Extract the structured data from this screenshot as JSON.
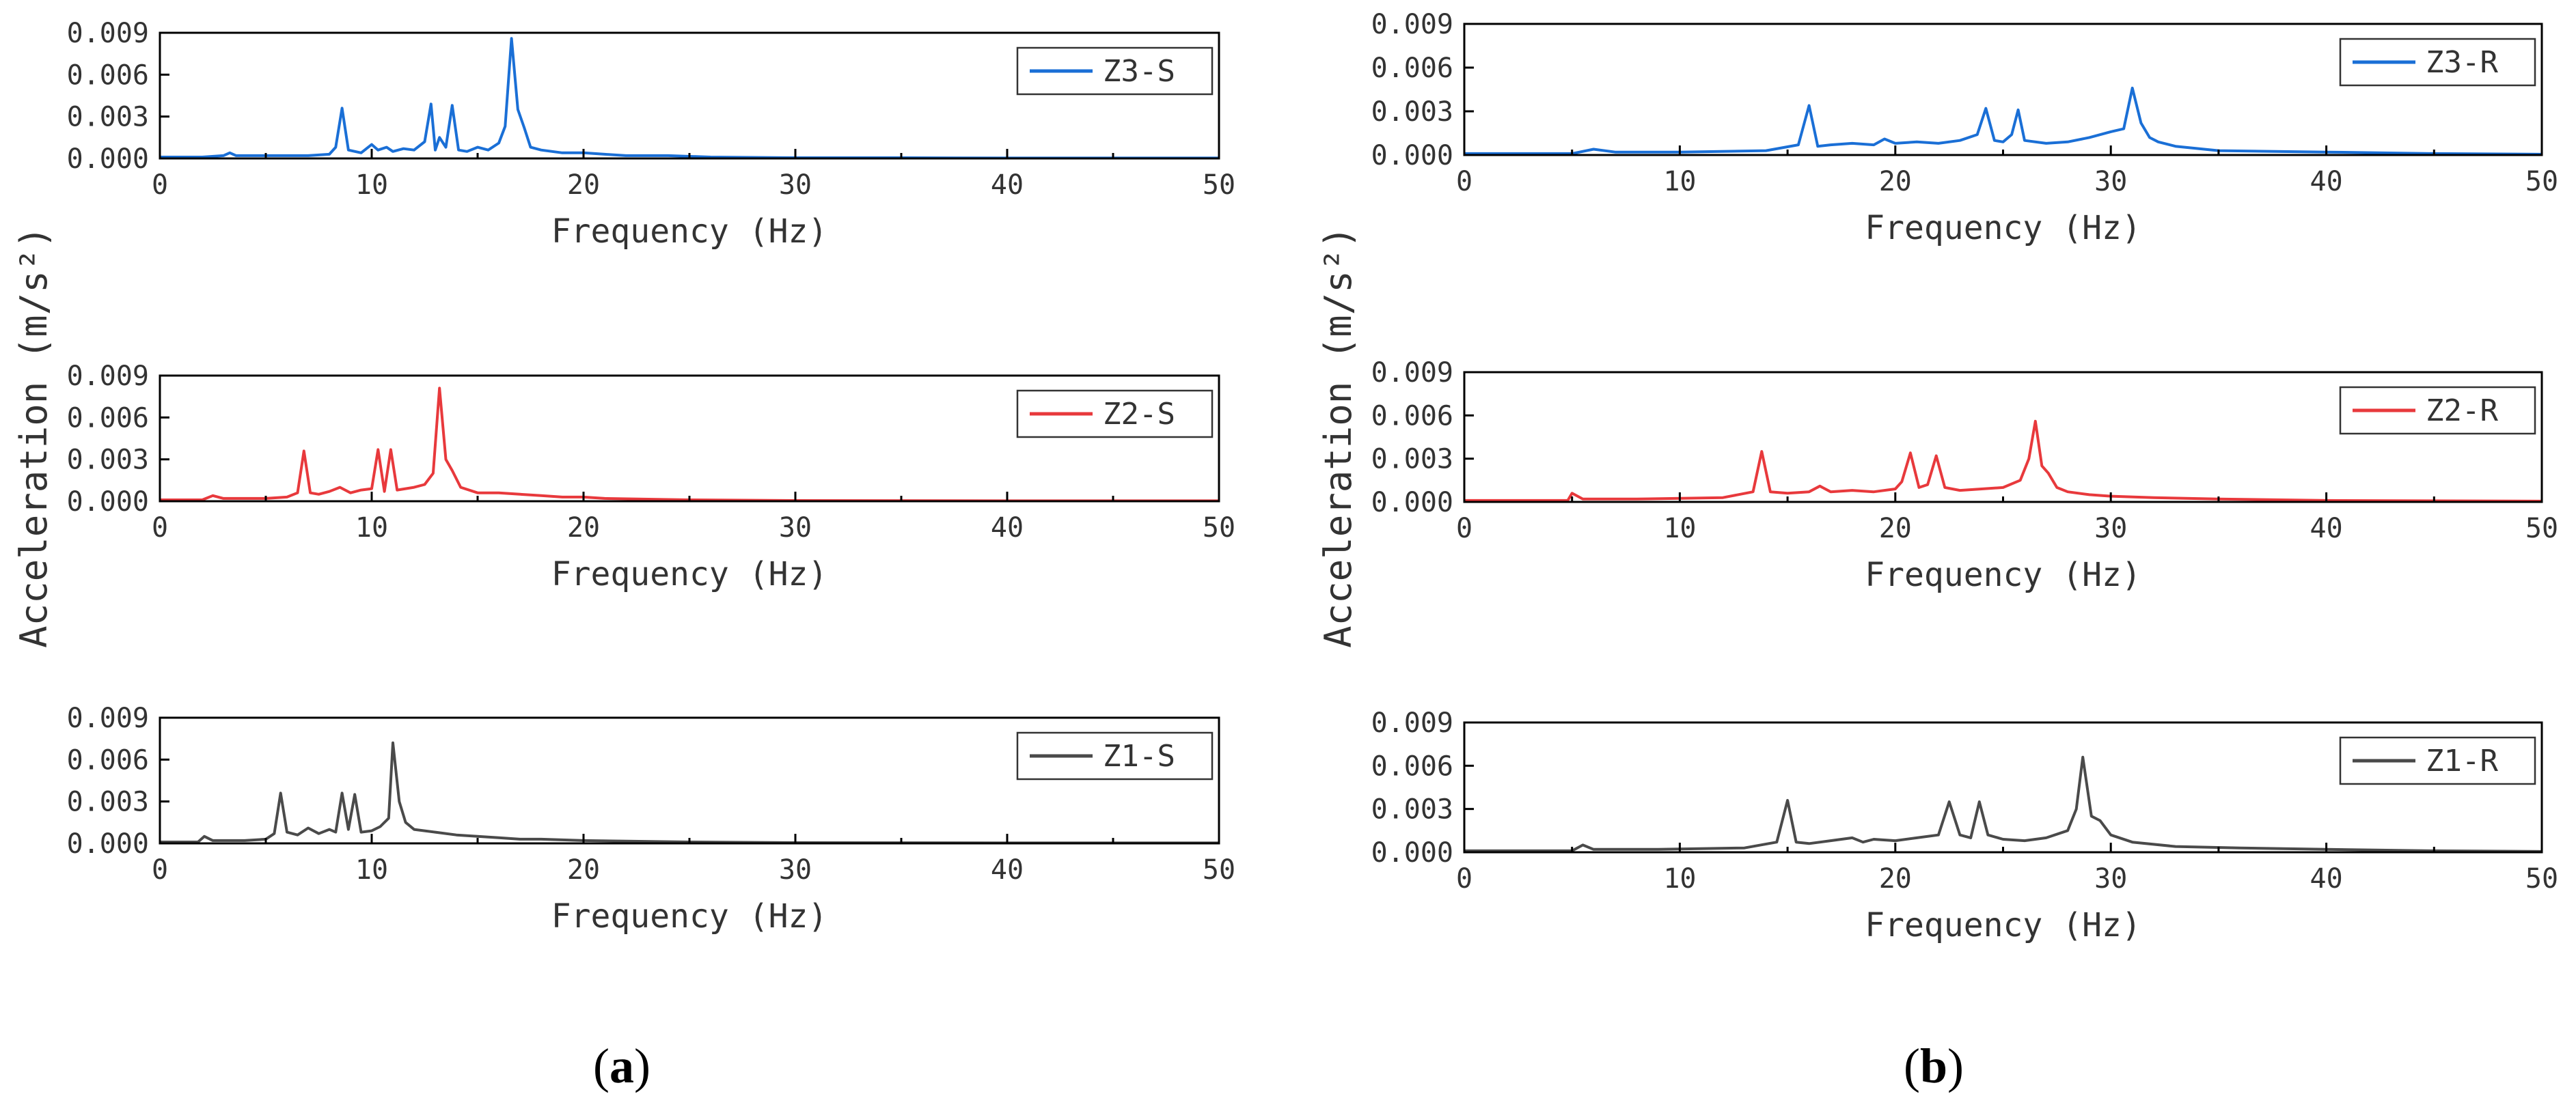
{
  "figure": {
    "shared_ylabel": "Acceleration (m/s²)",
    "columns": [
      {
        "id": "a",
        "label_open": "(",
        "label_letter": "a",
        "label_close": ")"
      },
      {
        "id": "b",
        "label_open": "(",
        "label_letter": "b",
        "label_close": ")"
      }
    ]
  },
  "chart_data": [
    {
      "type": "line",
      "column": "a",
      "row": 0,
      "legend": "Z3-S",
      "color": "#1a6fd6",
      "xlabel": "Frequency (Hz)",
      "ylabel": "Acceleration (m/s²)",
      "xlim": [
        0,
        50
      ],
      "ylim": [
        0,
        0.009
      ],
      "xticks": [
        0,
        10,
        20,
        30,
        40,
        50
      ],
      "yticks": [
        0.0,
        0.003,
        0.006,
        0.009
      ],
      "ytick_labels": [
        "0.000",
        "0.003",
        "0.006",
        "0.009"
      ],
      "x": [
        0,
        2,
        3,
        3.3,
        3.6,
        5,
        7,
        8,
        8.3,
        8.6,
        8.9,
        9.5,
        10,
        10.3,
        10.7,
        11,
        11.5,
        12,
        12.5,
        12.8,
        13,
        13.2,
        13.5,
        13.8,
        14.1,
        14.5,
        15,
        15.5,
        16,
        16.3,
        16.6,
        16.9,
        17.2,
        17.5,
        18,
        19,
        20,
        21,
        22,
        24,
        26,
        30,
        35,
        40,
        50
      ],
      "y": [
        0.0001,
        0.0001,
        0.0002,
        0.0004,
        0.0002,
        0.0002,
        0.0002,
        0.0003,
        0.0008,
        0.0036,
        0.0006,
        0.0004,
        0.001,
        0.0006,
        0.0008,
        0.0005,
        0.0007,
        0.0006,
        0.0012,
        0.0039,
        0.0006,
        0.0015,
        0.0008,
        0.0038,
        0.0006,
        0.0005,
        0.0008,
        0.0006,
        0.0011,
        0.0023,
        0.0086,
        0.0035,
        0.0022,
        0.0008,
        0.0006,
        0.0004,
        0.0004,
        0.0003,
        0.0002,
        0.0002,
        0.0001,
        5e-05,
        5e-05,
        3e-05,
        3e-05
      ]
    },
    {
      "type": "line",
      "column": "a",
      "row": 1,
      "legend": "Z2-S",
      "color": "#e8393c",
      "xlabel": "Frequency (Hz)",
      "ylabel": "Acceleration (m/s²)",
      "xlim": [
        0,
        50
      ],
      "ylim": [
        0,
        0.009
      ],
      "xticks": [
        0,
        10,
        20,
        30,
        40,
        50
      ],
      "yticks": [
        0.0,
        0.003,
        0.006,
        0.009
      ],
      "ytick_labels": [
        "0.000",
        "0.003",
        "0.006",
        "0.009"
      ],
      "x": [
        0,
        2,
        2.5,
        3,
        5,
        6,
        6.5,
        6.8,
        7.1,
        7.5,
        8,
        8.5,
        9,
        9.5,
        10,
        10.3,
        10.6,
        10.9,
        11.2,
        11.6,
        12,
        12.5,
        12.9,
        13.2,
        13.5,
        13.8,
        14.2,
        15,
        16,
        17,
        18,
        19,
        20,
        21,
        25,
        30,
        40,
        50
      ],
      "y": [
        0.0001,
        0.0001,
        0.0004,
        0.0002,
        0.0002,
        0.0003,
        0.0006,
        0.0036,
        0.0006,
        0.0005,
        0.0007,
        0.001,
        0.0006,
        0.0008,
        0.0009,
        0.0037,
        0.0007,
        0.0037,
        0.0008,
        0.0009,
        0.001,
        0.0012,
        0.002,
        0.0081,
        0.003,
        0.0022,
        0.001,
        0.0006,
        0.0006,
        0.0005,
        0.0004,
        0.0003,
        0.0003,
        0.0002,
        0.0001,
        5e-05,
        3e-05,
        3e-05
      ]
    },
    {
      "type": "line",
      "column": "a",
      "row": 2,
      "legend": "Z1-S",
      "color": "#4a4a4a",
      "xlabel": "Frequency (Hz)",
      "ylabel": "Acceleration (m/s²)",
      "xlim": [
        0,
        50
      ],
      "ylim": [
        0,
        0.009
      ],
      "xticks": [
        0,
        10,
        20,
        30,
        40,
        50
      ],
      "yticks": [
        0.0,
        0.003,
        0.006,
        0.009
      ],
      "ytick_labels": [
        "0.000",
        "0.003",
        "0.006",
        "0.009"
      ],
      "x": [
        0,
        1.8,
        2.1,
        2.5,
        4,
        5,
        5.4,
        5.7,
        6.0,
        6.5,
        7,
        7.5,
        8,
        8.3,
        8.6,
        8.9,
        9.2,
        9.5,
        10,
        10.4,
        10.8,
        11.0,
        11.3,
        11.6,
        12,
        13,
        14,
        15,
        16,
        17,
        18,
        20,
        25,
        30,
        40,
        50
      ],
      "y": [
        0.0001,
        0.0001,
        0.0005,
        0.0002,
        0.0002,
        0.0003,
        0.0007,
        0.0036,
        0.0008,
        0.0006,
        0.0011,
        0.0007,
        0.001,
        0.0008,
        0.0036,
        0.001,
        0.0035,
        0.0008,
        0.0009,
        0.0012,
        0.0018,
        0.0072,
        0.003,
        0.0015,
        0.001,
        0.0008,
        0.0006,
        0.0005,
        0.0004,
        0.0003,
        0.0003,
        0.0002,
        0.0001,
        5e-05,
        3e-05,
        3e-05
      ]
    },
    {
      "type": "line",
      "column": "b",
      "row": 0,
      "legend": "Z3-R",
      "color": "#1a6fd6",
      "xlabel": "Frequency (Hz)",
      "ylabel": "Acceleration (m/s²)",
      "xlim": [
        0,
        50
      ],
      "ylim": [
        0,
        0.009
      ],
      "xticks": [
        0,
        10,
        20,
        30,
        40,
        50
      ],
      "yticks": [
        0.0,
        0.003,
        0.006,
        0.009
      ],
      "ytick_labels": [
        "0.000",
        "0.003",
        "0.006",
        "0.009"
      ],
      "x": [
        0,
        5,
        6,
        7,
        10,
        14,
        15.5,
        16,
        16.4,
        17,
        18,
        19,
        19.5,
        20,
        21,
        22,
        23,
        23.8,
        24.2,
        24.6,
        25,
        25.4,
        25.7,
        26,
        27,
        28,
        29,
        30,
        30.6,
        31,
        31.4,
        31.8,
        32.2,
        33,
        35,
        40,
        45,
        50
      ],
      "y": [
        0.0001,
        0.0001,
        0.0004,
        0.0002,
        0.0002,
        0.0003,
        0.0007,
        0.0034,
        0.0006,
        0.0007,
        0.0008,
        0.0007,
        0.0011,
        0.0008,
        0.0009,
        0.0008,
        0.001,
        0.0014,
        0.0032,
        0.001,
        0.0009,
        0.0014,
        0.0031,
        0.001,
        0.0008,
        0.0009,
        0.0012,
        0.0016,
        0.0018,
        0.0046,
        0.0022,
        0.0012,
        0.0009,
        0.0006,
        0.0003,
        0.0002,
        0.0001,
        5e-05
      ]
    },
    {
      "type": "line",
      "column": "b",
      "row": 1,
      "legend": "Z2-R",
      "color": "#e8393c",
      "xlabel": "Frequency (Hz)",
      "ylabel": "Acceleration (m/s²)",
      "xlim": [
        0,
        50
      ],
      "ylim": [
        0,
        0.009
      ],
      "xticks": [
        0,
        10,
        20,
        30,
        40,
        50
      ],
      "yticks": [
        0.0,
        0.003,
        0.006,
        0.009
      ],
      "ytick_labels": [
        "0.000",
        "0.003",
        "0.006",
        "0.009"
      ],
      "x": [
        0,
        4.8,
        5.0,
        5.5,
        8,
        12,
        13.4,
        13.8,
        14.2,
        15,
        16,
        16.5,
        17,
        18,
        19,
        20,
        20.3,
        20.7,
        21.1,
        21.5,
        21.9,
        22.3,
        23,
        24,
        25,
        25.8,
        26.2,
        26.5,
        26.8,
        27.1,
        27.5,
        28,
        29,
        30,
        32,
        35,
        40,
        50
      ],
      "y": [
        0.0001,
        0.0001,
        0.0006,
        0.0002,
        0.0002,
        0.0003,
        0.0007,
        0.0035,
        0.0007,
        0.0006,
        0.0007,
        0.0011,
        0.0007,
        0.0008,
        0.0007,
        0.0009,
        0.0014,
        0.0034,
        0.001,
        0.0012,
        0.0032,
        0.001,
        0.0008,
        0.0009,
        0.001,
        0.0015,
        0.003,
        0.0056,
        0.0025,
        0.002,
        0.001,
        0.0007,
        0.0005,
        0.0004,
        0.0003,
        0.0002,
        0.0001,
        5e-05
      ]
    },
    {
      "type": "line",
      "column": "b",
      "row": 2,
      "legend": "Z1-R",
      "color": "#4a4a4a",
      "xlabel": "Frequency (Hz)",
      "ylabel": "Acceleration (m/s²)",
      "xlim": [
        0,
        50
      ],
      "ylim": [
        0,
        0.009
      ],
      "xticks": [
        0,
        10,
        20,
        30,
        40,
        50
      ],
      "yticks": [
        0.0,
        0.003,
        0.006,
        0.009
      ],
      "ytick_labels": [
        "0.000",
        "0.003",
        "0.006",
        "0.009"
      ],
      "x": [
        0,
        5,
        5.5,
        6,
        9,
        13,
        14.5,
        15,
        15.4,
        16,
        17,
        18,
        18.5,
        19,
        20,
        21,
        22,
        22.5,
        23,
        23.5,
        23.9,
        24.3,
        25,
        26,
        27,
        28,
        28.4,
        28.7,
        29.1,
        29.5,
        30,
        31,
        33,
        36,
        40,
        45,
        50
      ],
      "y": [
        0.0001,
        0.0001,
        0.0005,
        0.0002,
        0.0002,
        0.0003,
        0.0007,
        0.0036,
        0.0007,
        0.0006,
        0.0008,
        0.001,
        0.0007,
        0.0009,
        0.0008,
        0.001,
        0.0012,
        0.0035,
        0.0012,
        0.001,
        0.0035,
        0.0012,
        0.0009,
        0.0008,
        0.001,
        0.0015,
        0.003,
        0.0066,
        0.0025,
        0.0022,
        0.0012,
        0.0007,
        0.0004,
        0.0003,
        0.0002,
        0.0001,
        5e-05
      ]
    }
  ]
}
